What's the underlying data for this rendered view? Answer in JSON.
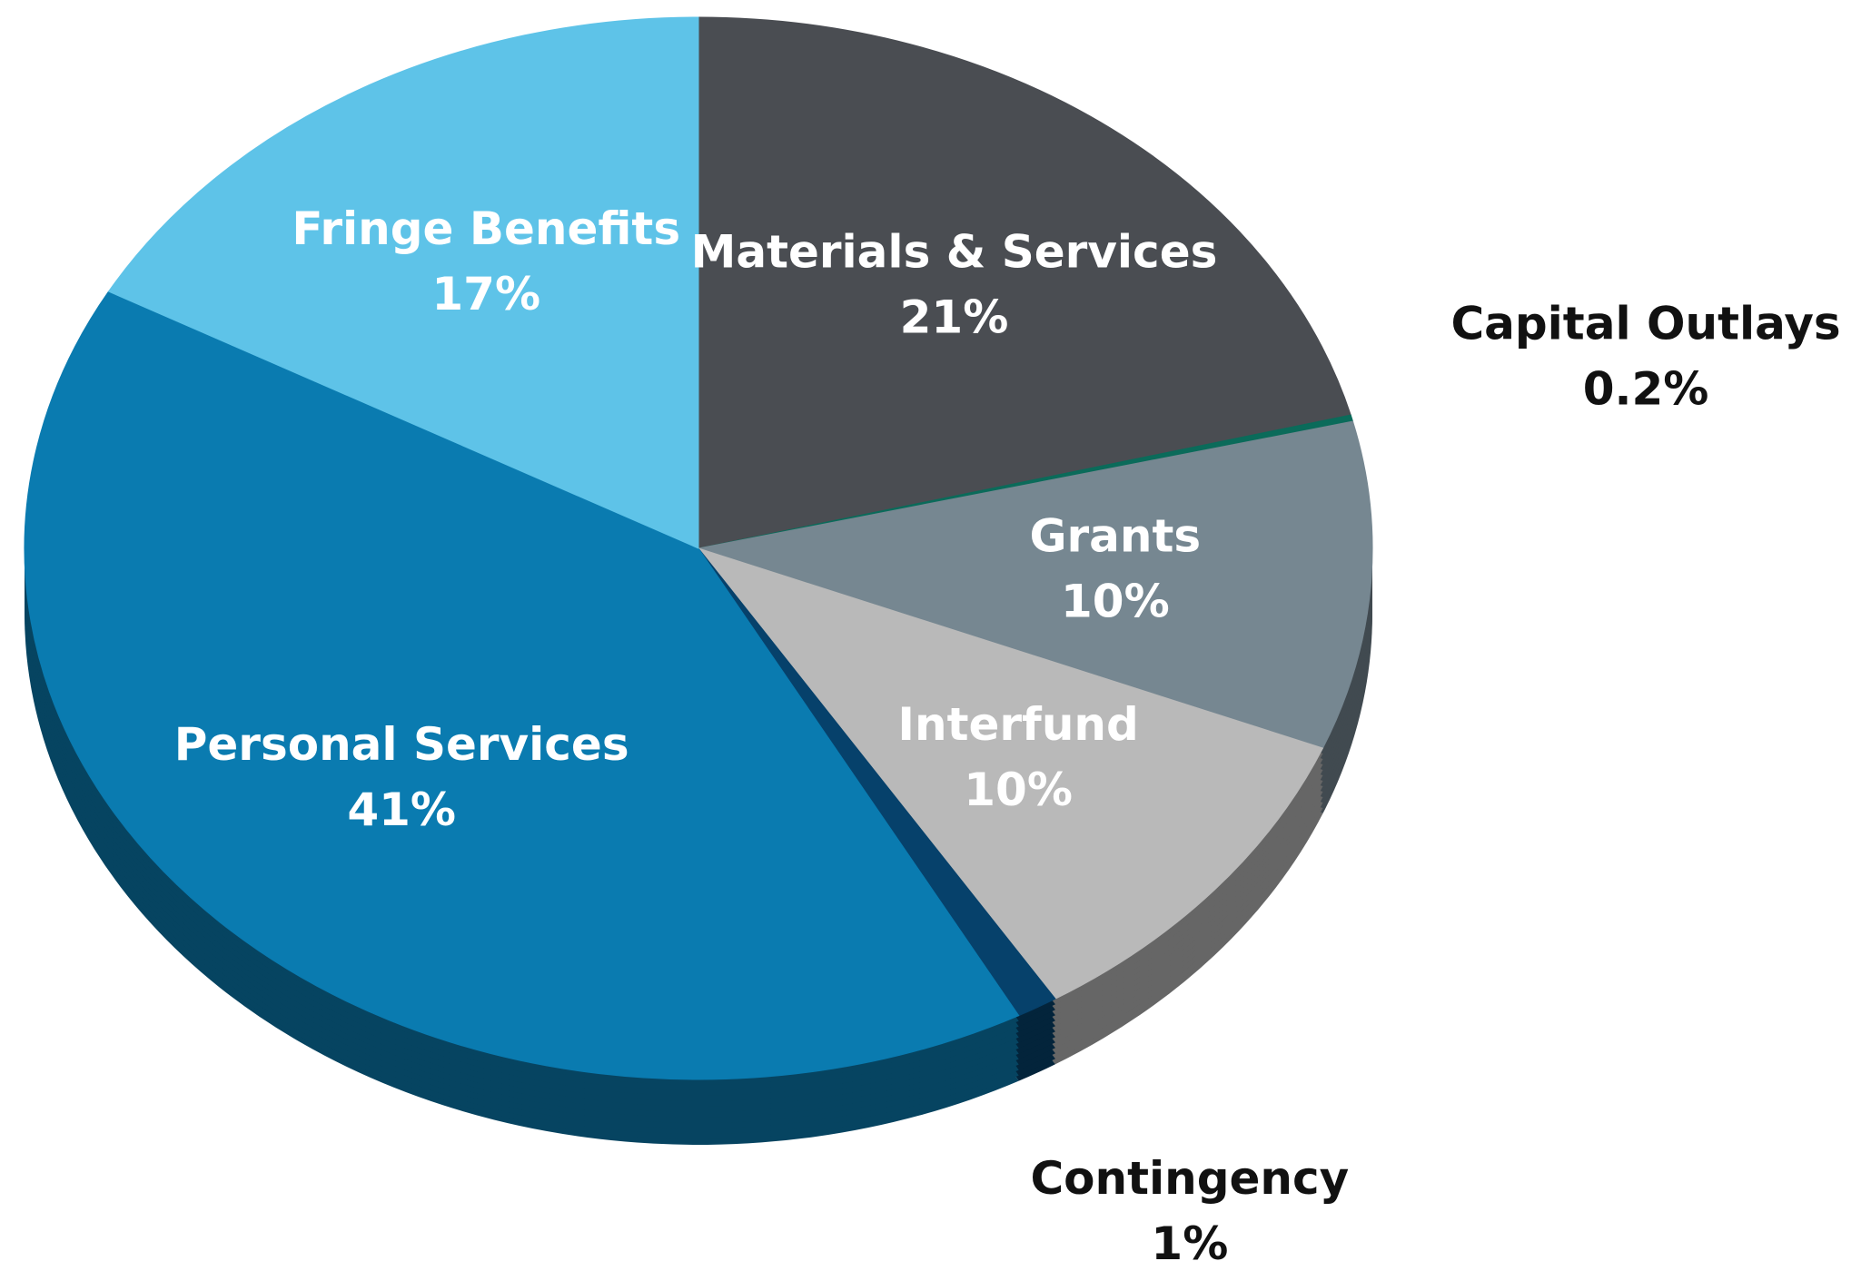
{
  "chart_data": {
    "type": "pie",
    "categories": [
      "Materials & Services",
      "Capital Outlays",
      "Grants",
      "Interfund",
      "Contingency",
      "Personal Services",
      "Fringe Benefits"
    ],
    "values": [
      21,
      0.2,
      10,
      10,
      1,
      41,
      17
    ],
    "value_labels": [
      "21%",
      "0.2%",
      "10%",
      "10%",
      "1%",
      "41%",
      "17%"
    ],
    "colors": [
      "#4a4d52",
      "#0b6b5a",
      "#768791",
      "#b9b9b9",
      "#06416b",
      "#0a7bb0",
      "#5ec3e8"
    ]
  }
}
